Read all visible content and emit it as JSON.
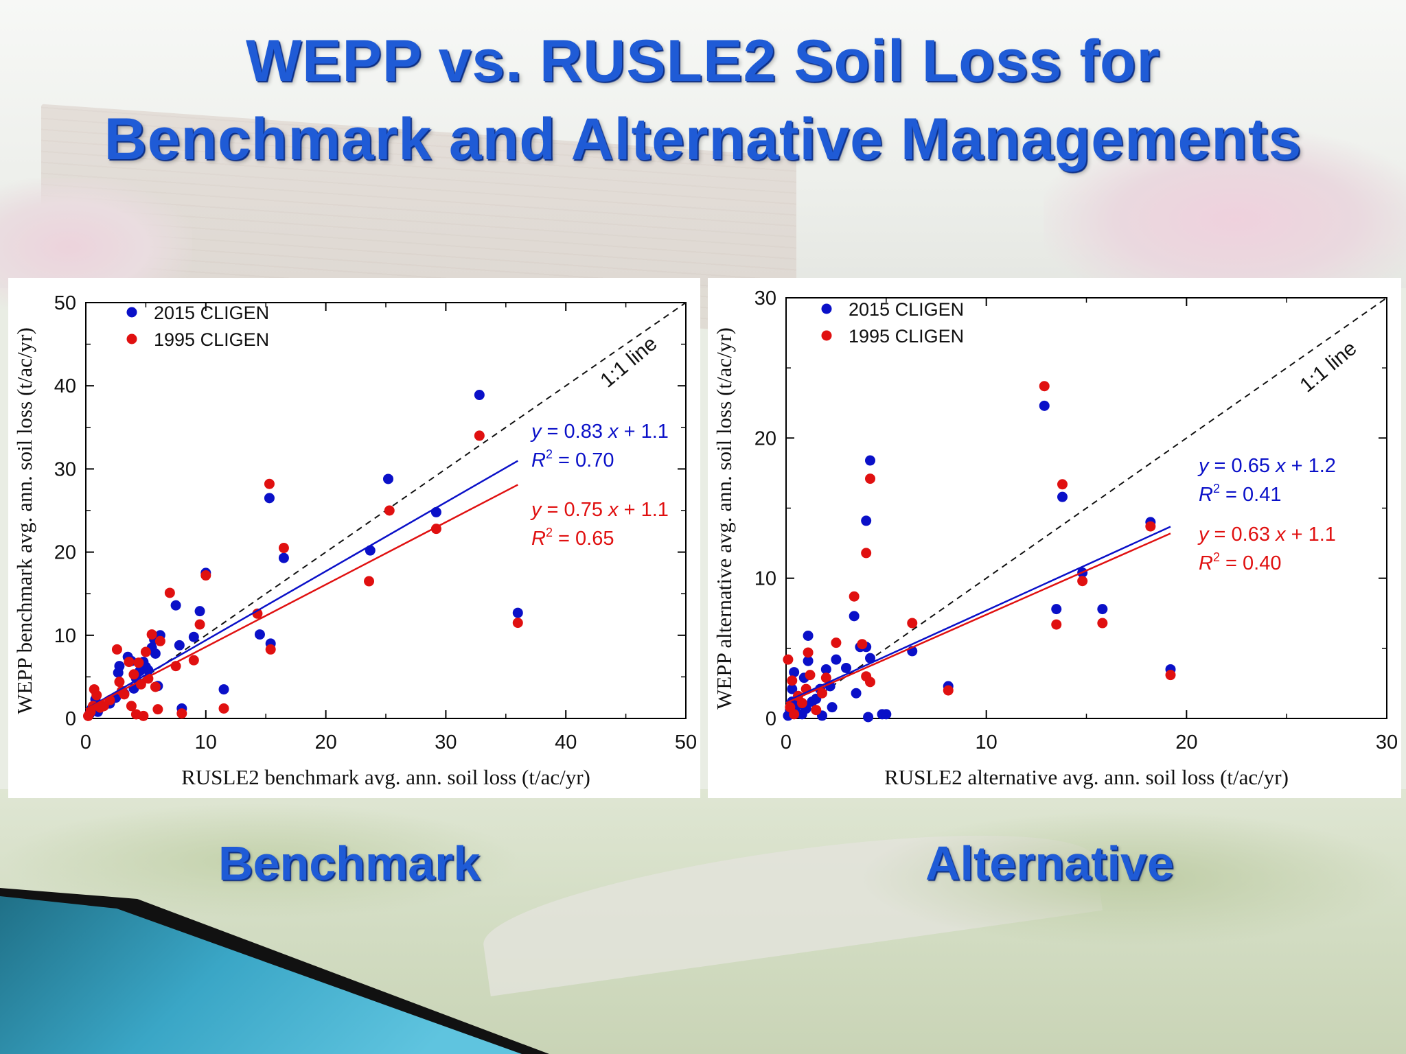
{
  "slide": {
    "title_line1": "WEPP vs. RUSLE2 Soil Loss for",
    "title_line2": "Benchmark and Alternative Managements",
    "caption_left": "Benchmark",
    "caption_right": "Alternative"
  },
  "colors": {
    "title": "#1f5bd6",
    "series_2015": "#0a10c8",
    "series_1995": "#e01010"
  },
  "chart_data": [
    {
      "type": "scatter",
      "id": "benchmark",
      "xlabel": "RUSLE2 benchmark avg. ann. soil loss (t/ac/yr)",
      "ylabel": "WEPP benchmark avg. ann. soil loss (t/ac/yr)",
      "xlim": [
        0,
        50
      ],
      "ylim": [
        0,
        50
      ],
      "xticks": [
        0,
        10,
        20,
        30,
        40,
        50
      ],
      "yticks": [
        0,
        10,
        20,
        30,
        40,
        50
      ],
      "legend_position": "top-left",
      "one_to_one_label": "1:1 line",
      "series": [
        {
          "name": "2015 CLIGEN",
          "color": "#0a10c8",
          "fit": {
            "slope": 0.83,
            "intercept": 1.1,
            "x_end": 36
          },
          "equation": {
            "y": "y",
            "eq": " = 0.83 ",
            "x": "x",
            "rest": " + 1.1",
            "r": "R",
            "sup": "2",
            "r2": " = 0.70"
          },
          "points": [
            [
              0.3,
              0.5
            ],
            [
              0.5,
              1.2
            ],
            [
              0.8,
              2.3
            ],
            [
              1.0,
              0.8
            ],
            [
              1.5,
              1.5
            ],
            [
              2.0,
              1.8
            ],
            [
              2.5,
              2.5
            ],
            [
              2.7,
              5.5
            ],
            [
              2.8,
              6.3
            ],
            [
              3.2,
              3.0
            ],
            [
              3.5,
              7.4
            ],
            [
              3.8,
              6.9
            ],
            [
              4.0,
              3.6
            ],
            [
              4.2,
              4.8
            ],
            [
              4.5,
              5.7
            ],
            [
              4.8,
              6.8
            ],
            [
              5.0,
              6.2
            ],
            [
              5.2,
              5.8
            ],
            [
              5.5,
              8.5
            ],
            [
              5.7,
              9.5
            ],
            [
              5.8,
              7.8
            ],
            [
              6.0,
              3.9
            ],
            [
              6.2,
              10.0
            ],
            [
              7.5,
              13.6
            ],
            [
              7.8,
              8.8
            ],
            [
              8.0,
              1.2
            ],
            [
              9.0,
              9.8
            ],
            [
              9.5,
              12.9
            ],
            [
              10.0,
              17.5
            ],
            [
              11.5,
              3.5
            ],
            [
              14.5,
              10.1
            ],
            [
              15.3,
              26.5
            ],
            [
              15.4,
              9.0
            ],
            [
              16.5,
              19.3
            ],
            [
              23.7,
              20.2
            ],
            [
              25.2,
              28.8
            ],
            [
              29.2,
              24.8
            ],
            [
              32.8,
              38.9
            ],
            [
              36.0,
              12.7
            ]
          ]
        },
        {
          "name": "1995 CLIGEN",
          "color": "#e01010",
          "fit": {
            "slope": 0.75,
            "intercept": 1.1,
            "x_end": 36
          },
          "equation": {
            "y": "y",
            "eq": " = 0.75 ",
            "x": "x",
            "rest": " + 1.1",
            "r": "R",
            "sup": "2",
            "r2": " = 0.65"
          },
          "points": [
            [
              0.2,
              0.3
            ],
            [
              0.4,
              0.8
            ],
            [
              0.6,
              1.5
            ],
            [
              0.7,
              3.5
            ],
            [
              0.9,
              2.8
            ],
            [
              1.2,
              1.3
            ],
            [
              1.5,
              1.5
            ],
            [
              2.0,
              2.2
            ],
            [
              2.6,
              8.3
            ],
            [
              2.8,
              4.4
            ],
            [
              3.0,
              3.3
            ],
            [
              3.2,
              2.9
            ],
            [
              3.6,
              6.8
            ],
            [
              3.8,
              1.5
            ],
            [
              4.0,
              5.3
            ],
            [
              4.2,
              0.5
            ],
            [
              4.4,
              6.7
            ],
            [
              4.6,
              4.1
            ],
            [
              4.8,
              0.3
            ],
            [
              5.0,
              8.0
            ],
            [
              5.2,
              4.8
            ],
            [
              5.5,
              10.1
            ],
            [
              5.8,
              3.8
            ],
            [
              6.0,
              1.1
            ],
            [
              6.2,
              9.3
            ],
            [
              7.0,
              15.1
            ],
            [
              7.5,
              6.3
            ],
            [
              8.0,
              0.6
            ],
            [
              9.0,
              7.0
            ],
            [
              9.5,
              11.3
            ],
            [
              10.0,
              17.2
            ],
            [
              11.5,
              1.2
            ],
            [
              14.3,
              12.6
            ],
            [
              15.3,
              28.2
            ],
            [
              15.4,
              8.3
            ],
            [
              16.5,
              20.5
            ],
            [
              23.6,
              16.5
            ],
            [
              25.3,
              25.0
            ],
            [
              29.2,
              22.8
            ],
            [
              32.8,
              34.0
            ],
            [
              36.0,
              11.5
            ]
          ]
        }
      ]
    },
    {
      "type": "scatter",
      "id": "alternative",
      "xlabel": "RUSLE2 alternative avg. ann. soil loss (t/ac/yr)",
      "ylabel": "WEPP alternative avg. ann. soil loss (t/ac/yr)",
      "xlim": [
        0,
        30
      ],
      "ylim": [
        0,
        30
      ],
      "xticks": [
        0,
        10,
        20,
        30
      ],
      "yticks": [
        0,
        10,
        20,
        30
      ],
      "legend_position": "top-left",
      "one_to_one_label": "1:1 line",
      "series": [
        {
          "name": "2015 CLIGEN",
          "color": "#0a10c8",
          "fit": {
            "slope": 0.65,
            "intercept": 1.2,
            "x_end": 19.2
          },
          "equation": {
            "y": "y",
            "eq": " = 0.65 ",
            "x": "x",
            "rest": " + 1.2",
            "r": "R",
            "sup": "2",
            "r2": " = 0.41"
          },
          "points": [
            [
              0.1,
              0.2
            ],
            [
              0.2,
              0.6
            ],
            [
              0.3,
              1.2
            ],
            [
              0.3,
              2.1
            ],
            [
              0.4,
              3.3
            ],
            [
              0.5,
              0.4
            ],
            [
              0.6,
              1.0
            ],
            [
              0.8,
              0.3
            ],
            [
              0.9,
              2.9
            ],
            [
              1.0,
              0.7
            ],
            [
              1.1,
              4.1
            ],
            [
              1.1,
              5.9
            ],
            [
              1.3,
              1.2
            ],
            [
              1.5,
              1.4
            ],
            [
              1.7,
              2.1
            ],
            [
              1.8,
              0.2
            ],
            [
              2.0,
              3.5
            ],
            [
              2.2,
              2.3
            ],
            [
              2.3,
              0.8
            ],
            [
              2.5,
              4.2
            ],
            [
              3.0,
              3.6
            ],
            [
              3.4,
              7.3
            ],
            [
              3.5,
              1.8
            ],
            [
              3.7,
              5.1
            ],
            [
              4.0,
              14.1
            ],
            [
              4.0,
              5.1
            ],
            [
              4.1,
              0.1
            ],
            [
              4.2,
              18.4
            ],
            [
              4.2,
              4.3
            ],
            [
              4.8,
              0.3
            ],
            [
              5.0,
              0.3
            ],
            [
              6.3,
              4.8
            ],
            [
              8.1,
              2.3
            ],
            [
              12.9,
              22.3
            ],
            [
              13.5,
              7.8
            ],
            [
              13.8,
              15.8
            ],
            [
              14.8,
              10.4
            ],
            [
              15.8,
              7.8
            ],
            [
              18.2,
              14.0
            ],
            [
              19.2,
              3.5
            ]
          ]
        },
        {
          "name": "1995 CLIGEN",
          "color": "#e01010",
          "fit": {
            "slope": 0.63,
            "intercept": 1.1,
            "x_end": 19.2
          },
          "equation": {
            "y": "y",
            "eq": " = 0.63 ",
            "x": "x",
            "rest": " + 1.1",
            "r": "R",
            "sup": "2",
            "r2": " = 0.40"
          },
          "points": [
            [
              0.1,
              4.2
            ],
            [
              0.2,
              0.8
            ],
            [
              0.3,
              2.7
            ],
            [
              0.4,
              0.3
            ],
            [
              0.6,
              1.6
            ],
            [
              0.8,
              1.1
            ],
            [
              1.0,
              2.1
            ],
            [
              1.1,
              4.7
            ],
            [
              1.2,
              3.1
            ],
            [
              1.5,
              0.6
            ],
            [
              1.8,
              1.8
            ],
            [
              2.0,
              2.9
            ],
            [
              2.5,
              5.4
            ],
            [
              3.4,
              8.7
            ],
            [
              3.8,
              5.3
            ],
            [
              4.0,
              11.8
            ],
            [
              4.0,
              3.0
            ],
            [
              4.2,
              17.1
            ],
            [
              4.2,
              2.6
            ],
            [
              6.3,
              6.8
            ],
            [
              8.1,
              2.0
            ],
            [
              12.9,
              23.7
            ],
            [
              13.5,
              6.7
            ],
            [
              13.8,
              16.7
            ],
            [
              14.8,
              9.8
            ],
            [
              15.8,
              6.8
            ],
            [
              18.2,
              13.7
            ],
            [
              19.2,
              3.1
            ]
          ]
        }
      ]
    }
  ]
}
